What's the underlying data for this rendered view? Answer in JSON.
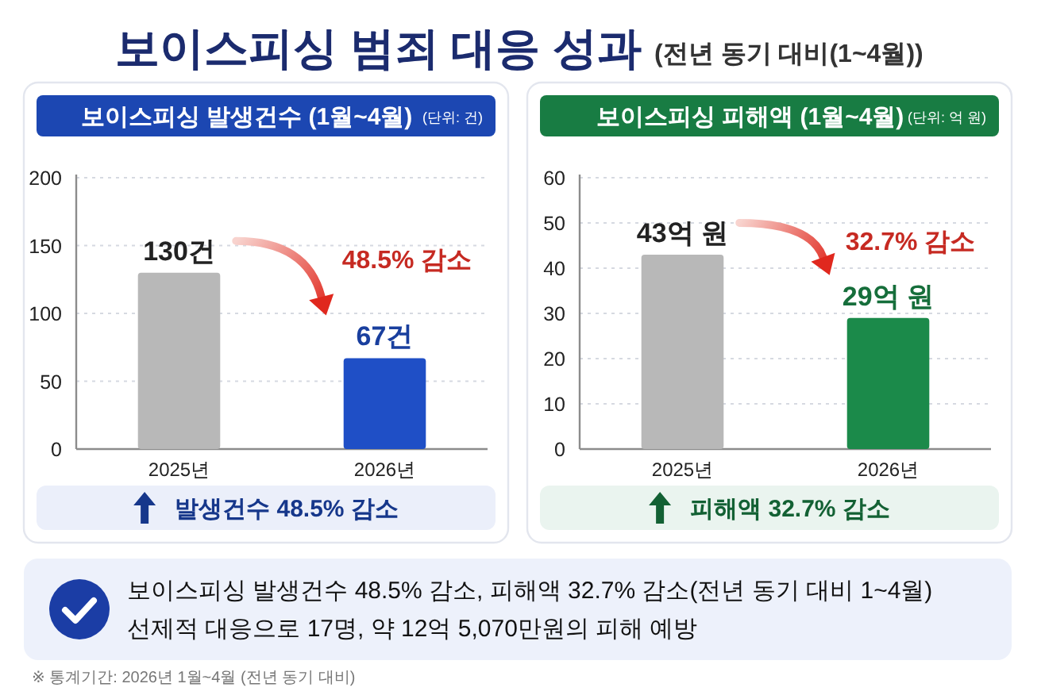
{
  "chart_data": [
    {
      "type": "other",
      "title": "보이스피싱 범죄 대응 성과",
      "subtitle": "(전년 동기 대비(1~4월))"
    },
    {
      "type": "bar",
      "title": "보이스피싱 발생건수 (1월~4월)",
      "subtitle": "(단위: 건)",
      "categories": [
        "2025년",
        "2026년"
      ],
      "values": [
        130,
        67
      ],
      "colors": [
        "#b8b8b8",
        "#1f4fc6"
      ],
      "value_labels": [
        "130건",
        "67건"
      ],
      "ylim": [
        0,
        200
      ],
      "yticks": [
        0,
        50,
        100,
        150,
        200
      ],
      "grid": "y",
      "annotations": [
        "48.5% 감소",
        "발생건수 48.5% 감소"
      ]
    },
    {
      "type": "bar",
      "title": "보이스피싱 피해액 (1월~4월)",
      "subtitle": "(단위: 억 원)",
      "categories": [
        "2025년",
        "2026년"
      ],
      "values": [
        43,
        29
      ],
      "colors": [
        "#b8b8b8",
        "#1b8a4a"
      ],
      "value_labels": [
        "43억 원",
        "29억 원"
      ],
      "ylim": [
        0,
        60
      ],
      "yticks": [
        0,
        10,
        20,
        30,
        40,
        50,
        60
      ],
      "grid": "y",
      "annotations": [
        "32.7% 감소",
        "피해액 32.7% 감소"
      ]
    },
    {
      "type": "other",
      "annotations": [
        "보이스피싱 발생건수 48.5% 감소, 피해액 32.7% 감소(전년 동기 대비 1~4월)",
        "선제적 대응으로 17명, 약 12억 5,070만원의 피해 예방",
        "※ 통계기간: 2026년 1월~4월 (전년 동기 대비)"
      ]
    }
  ]
}
